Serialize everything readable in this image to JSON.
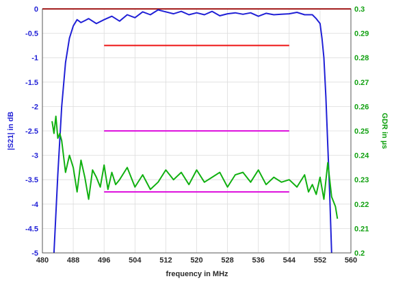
{
  "chart_data": {
    "type": "line",
    "xlabel": "frequency in MHz",
    "ylabel_left": "|S21| in dB",
    "ylabel_right": "GDR in µs",
    "xlim": [
      480,
      560
    ],
    "ylim_left": [
      -5,
      0
    ],
    "ylim_right": [
      0.2,
      0.3
    ],
    "grid": true,
    "x_ticks": [
      "480",
      "488",
      "496",
      "504",
      "512",
      "520",
      "528",
      "536",
      "544",
      "552",
      "560"
    ],
    "y_left_ticks": [
      "0",
      "-0.5",
      "-1",
      "-1.5",
      "-2",
      "-2.5",
      "-3",
      "-3.5",
      "-4",
      "-4.5",
      "-5"
    ],
    "y_right_ticks": [
      "0.3",
      "0.29",
      "0.28",
      "0.27",
      "0.26",
      "0.25",
      "0.24",
      "0.23",
      "0.22",
      "0.21",
      "0.2"
    ],
    "colors": {
      "s21": "#1f1fd6",
      "gdr": "#10b010",
      "red": "#ee1111",
      "magenta": "#dd11dd"
    },
    "series": [
      {
        "axis": "left",
        "x": [
          483.0,
          484.0,
          485.0,
          486.0,
          487.0,
          488.0,
          489.0,
          490.0,
          491.0,
          492.0,
          494.0,
          496.0,
          498.0,
          500.0,
          502.0,
          504.0,
          506.0,
          508.0,
          510.0,
          512.0,
          514.0,
          516.0,
          518.0,
          520.0,
          522.0,
          524.0,
          526.0,
          528.0,
          530.0,
          532.0,
          534.0,
          536.0,
          538.0,
          540.0,
          542.0,
          544.0,
          546.0,
          548.0,
          550.0,
          551.0,
          552.0,
          552.5,
          553.0,
          553.5,
          554.0,
          554.5,
          555.0
        ],
        "values": [
          -5.0,
          -3.4,
          -2.0,
          -1.1,
          -0.6,
          -0.35,
          -0.22,
          -0.28,
          -0.24,
          -0.2,
          -0.3,
          -0.22,
          -0.15,
          -0.25,
          -0.12,
          -0.18,
          -0.06,
          -0.12,
          -0.02,
          -0.06,
          -0.1,
          -0.05,
          -0.12,
          -0.08,
          -0.12,
          -0.05,
          -0.14,
          -0.1,
          -0.08,
          -0.11,
          -0.08,
          -0.15,
          -0.09,
          -0.12,
          -0.11,
          -0.1,
          -0.07,
          -0.12,
          -0.12,
          -0.2,
          -0.3,
          -0.6,
          -1.0,
          -1.8,
          -2.8,
          -3.8,
          -5.0
        ]
      },
      {
        "axis": "right",
        "x": [
          482.5,
          483.0,
          483.5,
          484.0,
          484.5,
          485.0,
          486.0,
          487.0,
          488.0,
          489.0,
          490.0,
          491.0,
          492.0,
          493.0,
          494.0,
          495.0,
          496.0,
          497.0,
          498.0,
          499.0,
          500.0,
          502.0,
          504.0,
          506.0,
          508.0,
          510.0,
          512.0,
          514.0,
          516.0,
          518.0,
          520.0,
          522.0,
          524.0,
          526.0,
          528.0,
          530.0,
          532.0,
          534.0,
          536.0,
          538.0,
          540.0,
          542.0,
          544.0,
          546.0,
          548.0,
          549.0,
          550.0,
          551.0,
          552.0,
          553.0,
          554.0,
          555.0,
          556.0,
          556.5
        ],
        "values": [
          0.254,
          0.249,
          0.256,
          0.247,
          0.249,
          0.246,
          0.233,
          0.24,
          0.235,
          0.225,
          0.238,
          0.231,
          0.222,
          0.234,
          0.231,
          0.227,
          0.236,
          0.226,
          0.233,
          0.228,
          0.23,
          0.235,
          0.227,
          0.232,
          0.226,
          0.229,
          0.234,
          0.23,
          0.233,
          0.228,
          0.234,
          0.229,
          0.231,
          0.233,
          0.227,
          0.232,
          0.233,
          0.229,
          0.234,
          0.228,
          0.231,
          0.229,
          0.23,
          0.227,
          0.232,
          0.225,
          0.228,
          0.224,
          0.231,
          0.222,
          0.237,
          0.223,
          0.219,
          0.214
        ]
      }
    ],
    "reference_lines": [
      {
        "axis": "left",
        "y": 0,
        "x": [
          480,
          560
        ],
        "color": "#ee1111"
      },
      {
        "axis": "left",
        "y": -0.75,
        "x": [
          496,
          544
        ],
        "color": "#ee1111"
      },
      {
        "axis": "left",
        "y": -2.5,
        "x": [
          496,
          544
        ],
        "color": "#dd11dd"
      },
      {
        "axis": "left",
        "y": -3.75,
        "x": [
          496,
          544
        ],
        "color": "#dd11dd"
      }
    ]
  }
}
